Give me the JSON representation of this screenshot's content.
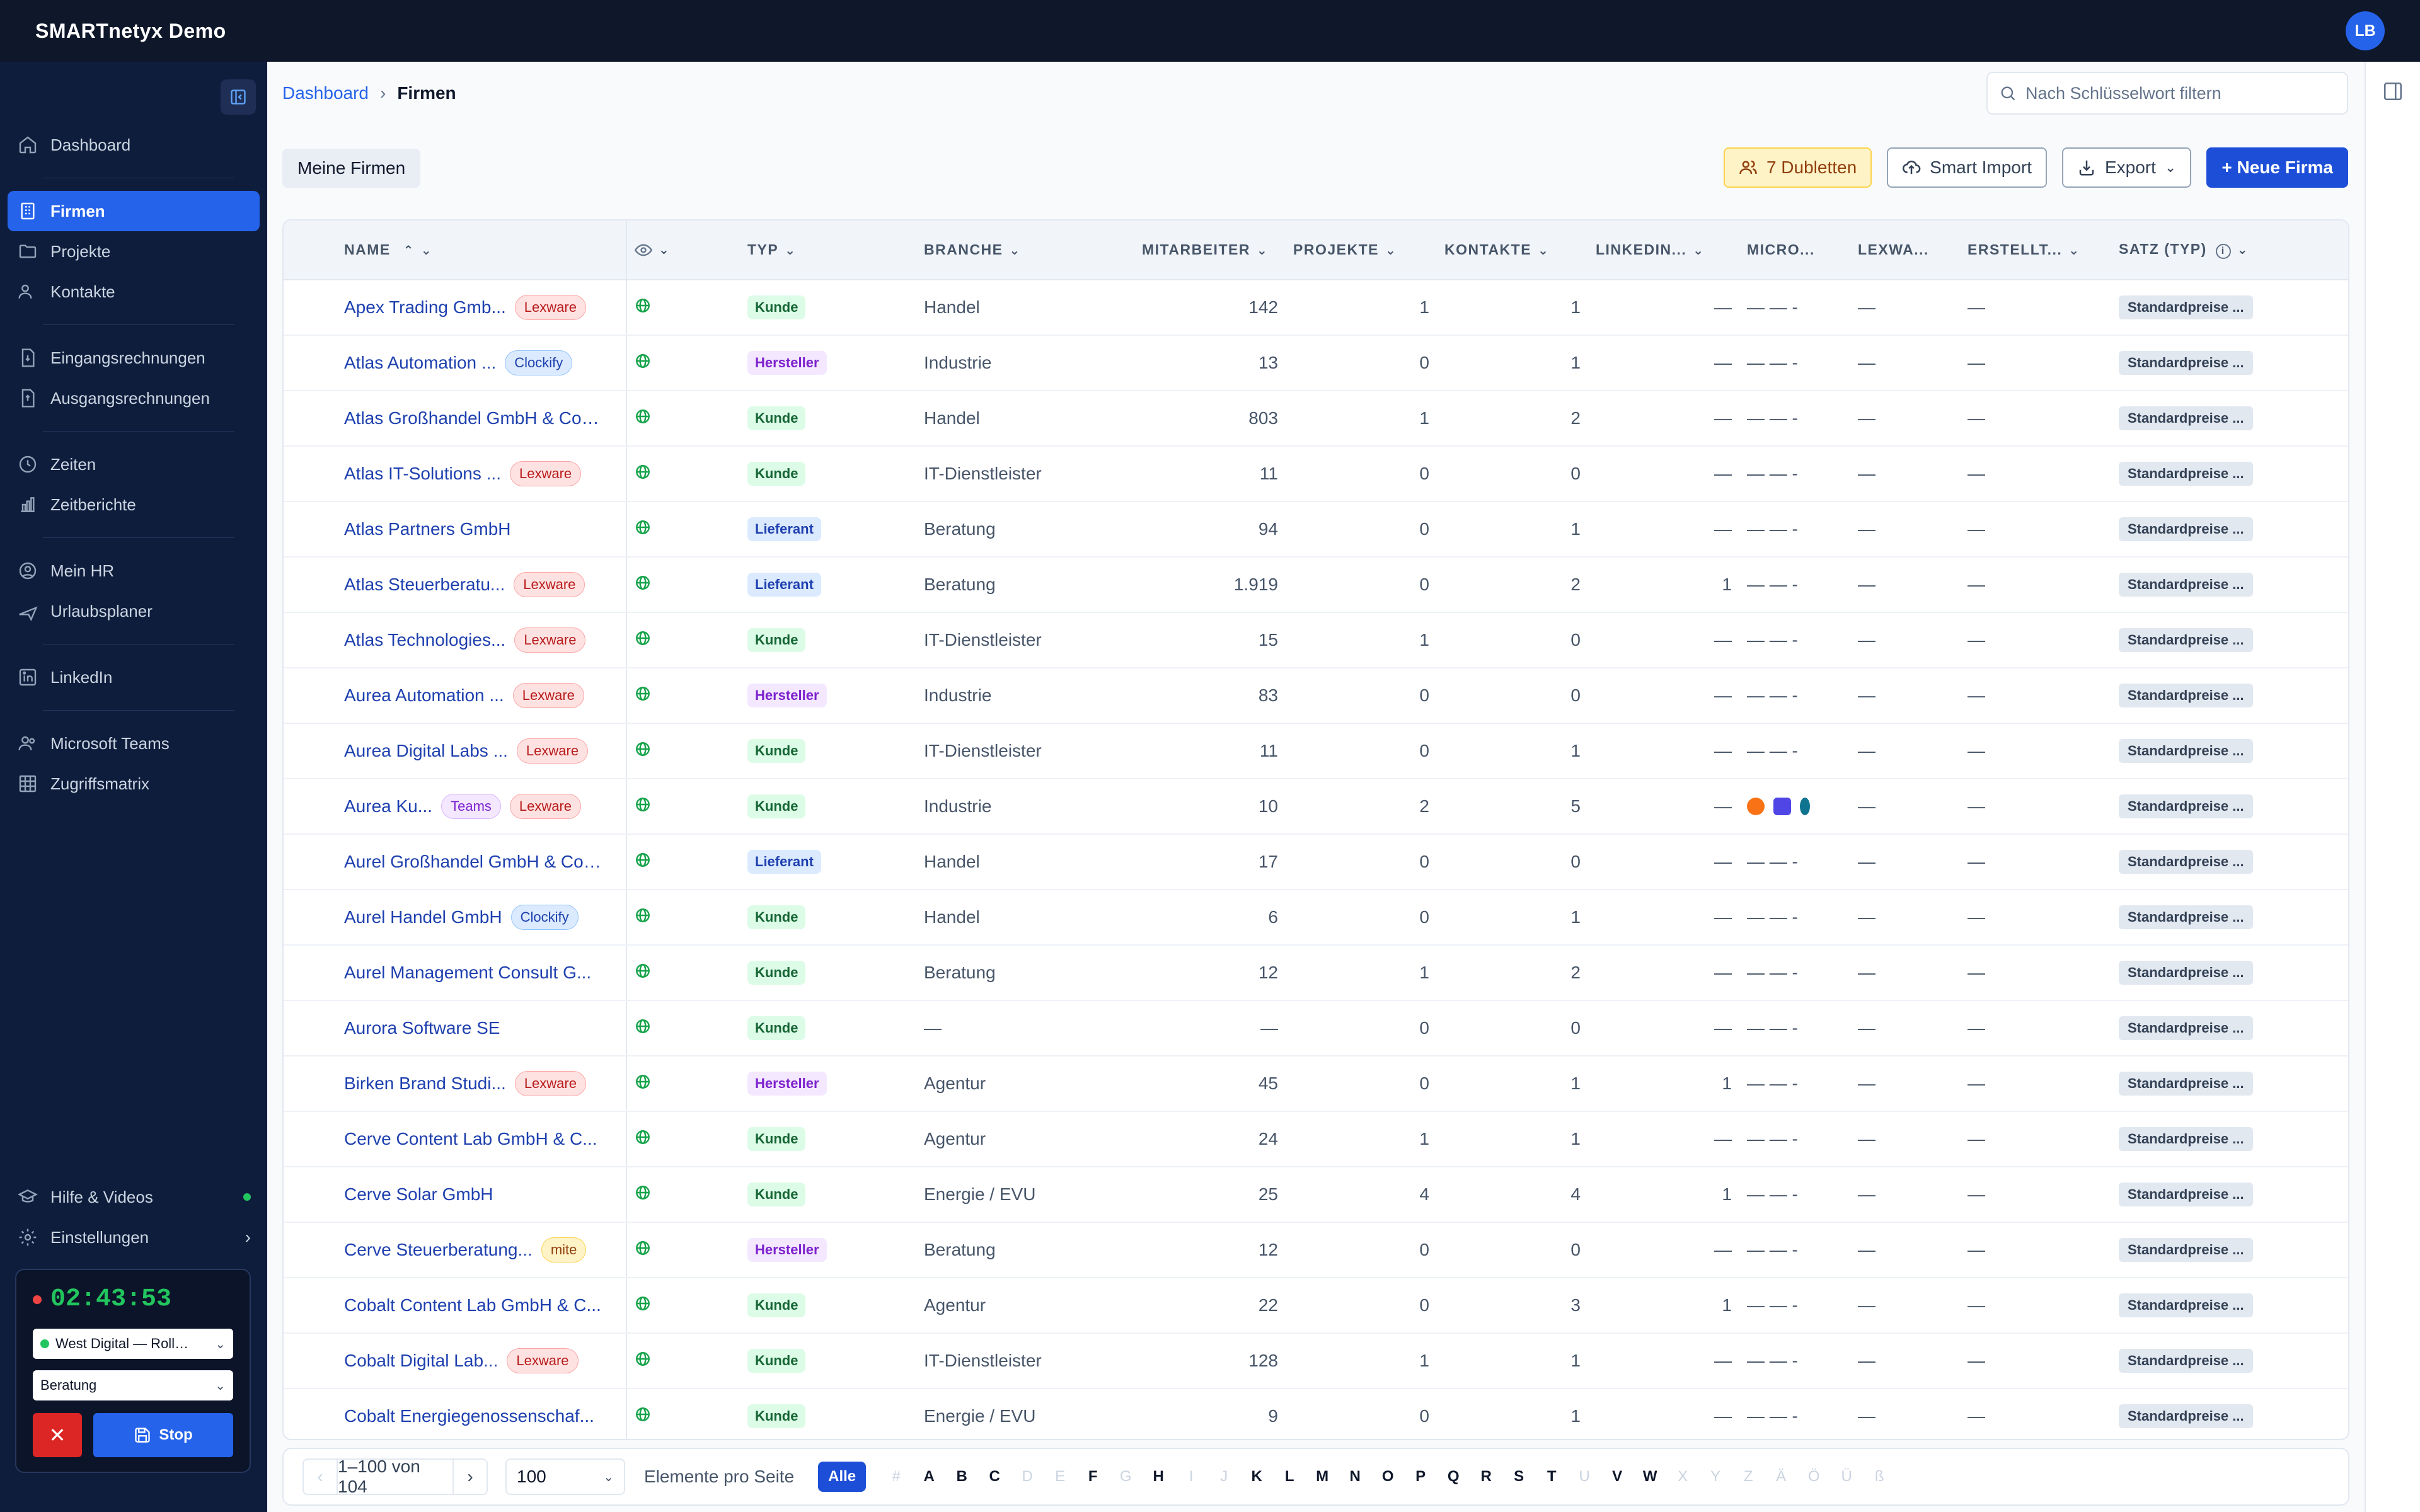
{
  "app": {
    "title": "SMARTnetyx Demo",
    "avatar": "LB"
  },
  "sidebar": {
    "groups": [
      [
        {
          "label": "Dashboard",
          "icon": "home-icon"
        }
      ],
      [
        {
          "label": "Firmen",
          "icon": "building-icon",
          "active": true
        },
        {
          "label": "Projekte",
          "icon": "folder-icon"
        },
        {
          "label": "Kontakte",
          "icon": "users-icon"
        }
      ],
      [
        {
          "label": "Eingangsrechnungen",
          "icon": "invoice-in-icon"
        },
        {
          "label": "Ausgangsrechnungen",
          "icon": "invoice-out-icon"
        }
      ],
      [
        {
          "label": "Zeiten",
          "icon": "clock-icon"
        },
        {
          "label": "Zeitberichte",
          "icon": "bar-chart-icon"
        }
      ],
      [
        {
          "label": "Mein HR",
          "icon": "user-circle-icon"
        },
        {
          "label": "Urlaubsplaner",
          "icon": "plane-icon"
        }
      ],
      [
        {
          "label": "LinkedIn",
          "icon": "linkedin-icon"
        }
      ],
      [
        {
          "label": "Microsoft Teams",
          "icon": "teams-icon"
        },
        {
          "label": "Zugriffsmatrix",
          "icon": "grid-icon"
        }
      ]
    ],
    "help": "Hilfe & Videos",
    "settings": "Einstellungen"
  },
  "timer": {
    "time": "02:43:53",
    "project": "West Digital — Roll…",
    "activity": "Beratung",
    "stop": "Stop"
  },
  "breadcrumb": {
    "root": "Dashboard",
    "current": "Firmen"
  },
  "search": {
    "placeholder": "Nach Schlüsselwort filtern"
  },
  "filter": {
    "label": "Meine Firmen"
  },
  "actions": {
    "duplicates": "7 Dubletten",
    "import": "Smart Import",
    "export": "Export",
    "new": "+ Neue Firma"
  },
  "table": {
    "headers": {
      "name": "NAME",
      "typ": "TYP",
      "branche": "BRANCHE",
      "mitarbeiter": "MITARBEITER",
      "projekte": "PROJEKTE",
      "kontakte": "KONTAKTE",
      "linkedin": "LINKEDIN...",
      "micro": "MICRO...",
      "lexware": "LEXWA...",
      "erstellt": "ERSTELLT...",
      "satz": "SATZ (TYP)"
    },
    "rows": [
      {
        "name": "Apex Trading Gmb...",
        "tags": [
          "Lexware"
        ],
        "typ": "Kunde",
        "branche": "Handel",
        "mitarbeiter": "142",
        "projekte": "1",
        "kontakte": "1",
        "linkedin": "—",
        "micro": "— — -",
        "lexware": "—",
        "erstellt": "—",
        "satz": "Standardpreise ..."
      },
      {
        "name": "Atlas Automation ...",
        "tags": [
          "Clockify"
        ],
        "typ": "Hersteller",
        "branche": "Industrie",
        "mitarbeiter": "13",
        "projekte": "0",
        "kontakte": "1",
        "linkedin": "—",
        "micro": "— — -",
        "lexware": "—",
        "erstellt": "—",
        "satz": "Standardpreise ..."
      },
      {
        "name": "Atlas Großhandel GmbH & Co. ...",
        "tags": [],
        "typ": "Kunde",
        "branche": "Handel",
        "mitarbeiter": "803",
        "projekte": "1",
        "kontakte": "2",
        "linkedin": "—",
        "micro": "— — -",
        "lexware": "—",
        "erstellt": "—",
        "satz": "Standardpreise ..."
      },
      {
        "name": "Atlas IT-Solutions ...",
        "tags": [
          "Lexware"
        ],
        "typ": "Kunde",
        "branche": "IT-Dienstleister",
        "mitarbeiter": "11",
        "projekte": "0",
        "kontakte": "0",
        "linkedin": "—",
        "micro": "— — -",
        "lexware": "—",
        "erstellt": "—",
        "satz": "Standardpreise ..."
      },
      {
        "name": "Atlas Partners GmbH",
        "tags": [],
        "typ": "Lieferant",
        "branche": "Beratung",
        "mitarbeiter": "94",
        "projekte": "0",
        "kontakte": "1",
        "linkedin": "—",
        "micro": "— — -",
        "lexware": "—",
        "erstellt": "—",
        "satz": "Standardpreise ..."
      },
      {
        "name": "Atlas Steuerberatu...",
        "tags": [
          "Lexware"
        ],
        "typ": "Lieferant",
        "branche": "Beratung",
        "mitarbeiter": "1.919",
        "projekte": "0",
        "kontakte": "2",
        "linkedin": "1",
        "micro": "— — -",
        "lexware": "—",
        "erstellt": "—",
        "satz": "Standardpreise ..."
      },
      {
        "name": "Atlas Technologies...",
        "tags": [
          "Lexware"
        ],
        "typ": "Kunde",
        "branche": "IT-Dienstleister",
        "mitarbeiter": "15",
        "projekte": "1",
        "kontakte": "0",
        "linkedin": "—",
        "micro": "— — -",
        "lexware": "—",
        "erstellt": "—",
        "satz": "Standardpreise ..."
      },
      {
        "name": "Aurea Automation ...",
        "tags": [
          "Lexware"
        ],
        "typ": "Hersteller",
        "branche": "Industrie",
        "mitarbeiter": "83",
        "projekte": "0",
        "kontakte": "0",
        "linkedin": "—",
        "micro": "— — -",
        "lexware": "—",
        "erstellt": "—",
        "satz": "Standardpreise ..."
      },
      {
        "name": "Aurea Digital Labs ...",
        "tags": [
          "Lexware"
        ],
        "typ": "Kunde",
        "branche": "IT-Dienstleister",
        "mitarbeiter": "11",
        "projekte": "0",
        "kontakte": "1",
        "linkedin": "—",
        "micro": "— — -",
        "lexware": "—",
        "erstellt": "—",
        "satz": "Standardpreise ..."
      },
      {
        "name": "Aurea Ku...",
        "tags": [
          "Teams",
          "Lexware"
        ],
        "typ": "Kunde",
        "branche": "Industrie",
        "mitarbeiter": "10",
        "projekte": "2",
        "kontakte": "5",
        "linkedin": "—",
        "micro": "",
        "micro_icons": true,
        "lexware": "—",
        "erstellt": "—",
        "satz": "Standardpreise ..."
      },
      {
        "name": "Aurel Großhandel GmbH & Co. ...",
        "tags": [],
        "typ": "Lieferant",
        "branche": "Handel",
        "mitarbeiter": "17",
        "projekte": "0",
        "kontakte": "0",
        "linkedin": "—",
        "micro": "— — -",
        "lexware": "—",
        "erstellt": "—",
        "satz": "Standardpreise ..."
      },
      {
        "name": "Aurel Handel GmbH",
        "tags": [
          "Clockify"
        ],
        "typ": "Kunde",
        "branche": "Handel",
        "mitarbeiter": "6",
        "projekte": "0",
        "kontakte": "1",
        "linkedin": "—",
        "micro": "— — -",
        "lexware": "—",
        "erstellt": "—",
        "satz": "Standardpreise ..."
      },
      {
        "name": "Aurel Management Consult G...",
        "tags": [],
        "typ": "Kunde",
        "branche": "Beratung",
        "mitarbeiter": "12",
        "projekte": "1",
        "kontakte": "2",
        "linkedin": "—",
        "micro": "— — -",
        "lexware": "—",
        "erstellt": "—",
        "satz": "Standardpreise ..."
      },
      {
        "name": "Aurora Software SE",
        "tags": [],
        "typ": "Kunde",
        "branche": "—",
        "mitarbeiter": "—",
        "projekte": "0",
        "kontakte": "0",
        "linkedin": "—",
        "micro": "— — -",
        "lexware": "—",
        "erstellt": "—",
        "satz": "Standardpreise ..."
      },
      {
        "name": "Birken Brand Studi...",
        "tags": [
          "Lexware"
        ],
        "typ": "Hersteller",
        "branche": "Agentur",
        "mitarbeiter": "45",
        "projekte": "0",
        "kontakte": "1",
        "linkedin": "1",
        "micro": "— — -",
        "lexware": "—",
        "erstellt": "—",
        "satz": "Standardpreise ..."
      },
      {
        "name": "Cerve Content Lab GmbH & C...",
        "tags": [],
        "typ": "Kunde",
        "branche": "Agentur",
        "mitarbeiter": "24",
        "projekte": "1",
        "kontakte": "1",
        "linkedin": "—",
        "micro": "— — -",
        "lexware": "—",
        "erstellt": "—",
        "satz": "Standardpreise ..."
      },
      {
        "name": "Cerve Solar GmbH",
        "tags": [],
        "typ": "Kunde",
        "branche": "Energie / EVU",
        "mitarbeiter": "25",
        "projekte": "4",
        "kontakte": "4",
        "linkedin": "1",
        "micro": "— — -",
        "lexware": "—",
        "erstellt": "—",
        "satz": "Standardpreise ..."
      },
      {
        "name": "Cerve Steuerberatung...",
        "tags": [
          "mite"
        ],
        "typ": "Hersteller",
        "branche": "Beratung",
        "mitarbeiter": "12",
        "projekte": "0",
        "kontakte": "0",
        "linkedin": "—",
        "micro": "— — -",
        "lexware": "—",
        "erstellt": "—",
        "satz": "Standardpreise ..."
      },
      {
        "name": "Cobalt Content Lab GmbH & C...",
        "tags": [],
        "typ": "Kunde",
        "branche": "Agentur",
        "mitarbeiter": "22",
        "projekte": "0",
        "kontakte": "3",
        "linkedin": "1",
        "micro": "— — -",
        "lexware": "—",
        "erstellt": "—",
        "satz": "Standardpreise ..."
      },
      {
        "name": "Cobalt Digital Lab...",
        "tags": [
          "Lexware"
        ],
        "typ": "Kunde",
        "branche": "IT-Dienstleister",
        "mitarbeiter": "128",
        "projekte": "1",
        "kontakte": "1",
        "linkedin": "—",
        "micro": "— — -",
        "lexware": "—",
        "erstellt": "—",
        "satz": "Standardpreise ..."
      },
      {
        "name": "Cobalt Energiegenossenschaf...",
        "tags": [],
        "typ": "Kunde",
        "branche": "Energie / EVU",
        "mitarbeiter": "9",
        "projekte": "0",
        "kontakte": "1",
        "linkedin": "—",
        "micro": "— — -",
        "lexware": "—",
        "erstellt": "—",
        "satz": "Standardpreise ..."
      }
    ]
  },
  "pager": {
    "range": "1–100 von 104",
    "page_size": "100",
    "per_page_label": "Elemente pro Seite",
    "all": "Alle",
    "letters": [
      {
        "l": "#",
        "on": false
      },
      {
        "l": "A",
        "on": true
      },
      {
        "l": "B",
        "on": true
      },
      {
        "l": "C",
        "on": true
      },
      {
        "l": "D",
        "on": false
      },
      {
        "l": "E",
        "on": false
      },
      {
        "l": "F",
        "on": true
      },
      {
        "l": "G",
        "on": false
      },
      {
        "l": "H",
        "on": true
      },
      {
        "l": "I",
        "on": false
      },
      {
        "l": "J",
        "on": false
      },
      {
        "l": "K",
        "on": true
      },
      {
        "l": "L",
        "on": true
      },
      {
        "l": "M",
        "on": true
      },
      {
        "l": "N",
        "on": true
      },
      {
        "l": "O",
        "on": true
      },
      {
        "l": "P",
        "on": true
      },
      {
        "l": "Q",
        "on": true
      },
      {
        "l": "R",
        "on": true
      },
      {
        "l": "S",
        "on": true
      },
      {
        "l": "T",
        "on": true
      },
      {
        "l": "U",
        "on": false
      },
      {
        "l": "V",
        "on": true
      },
      {
        "l": "W",
        "on": true
      },
      {
        "l": "X",
        "on": false
      },
      {
        "l": "Y",
        "on": false
      },
      {
        "l": "Z",
        "on": false
      },
      {
        "l": "Ä",
        "on": false
      },
      {
        "l": "Ö",
        "on": false
      },
      {
        "l": "Ü",
        "on": false
      },
      {
        "l": "ß",
        "on": false
      }
    ]
  },
  "colors": {
    "topbar": "#0f172a",
    "sidebar": "#0f1d3d",
    "accent": "#2563eb",
    "timer_green": "#22c55e"
  }
}
